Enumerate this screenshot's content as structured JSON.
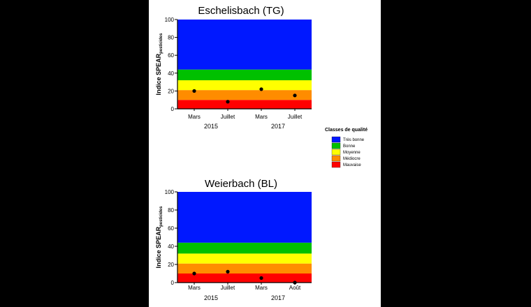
{
  "chart_data": [
    {
      "type": "scatter",
      "title": "Eschelisbach (TG)",
      "ylabel_main": "Indice SPEAR",
      "ylabel_sub": "pesticides",
      "ylim": [
        0,
        100
      ],
      "yticks": [
        0,
        20,
        40,
        60,
        80,
        100
      ],
      "categories": [
        "Mars",
        "Juillet",
        "Mars",
        "Juillet"
      ],
      "years": [
        {
          "label": "2015",
          "span": [
            0,
            1
          ]
        },
        {
          "label": "2017",
          "span": [
            2,
            3
          ]
        }
      ],
      "values": [
        20,
        8,
        22,
        15
      ],
      "bands": [
        {
          "from": 0,
          "to": 10,
          "color": "#ff0000"
        },
        {
          "from": 10,
          "to": 21,
          "color": "#ff8c00"
        },
        {
          "from": 21,
          "to": 32,
          "color": "#ffff00"
        },
        {
          "from": 32,
          "to": 44,
          "color": "#00c000"
        },
        {
          "from": 44,
          "to": 100,
          "color": "#0018ff"
        }
      ]
    },
    {
      "type": "scatter",
      "title": "Weierbach (BL)",
      "ylabel_main": "Indice SPEAR",
      "ylabel_sub": "pesticides",
      "ylim": [
        0,
        100
      ],
      "yticks": [
        0,
        20,
        40,
        60,
        80,
        100
      ],
      "categories": [
        "Mars",
        "Juillet",
        "Mars",
        "Août"
      ],
      "years": [
        {
          "label": "2015",
          "span": [
            0,
            1
          ]
        },
        {
          "label": "2017",
          "span": [
            2,
            3
          ]
        }
      ],
      "values": [
        10,
        12,
        5,
        0
      ],
      "bands": [
        {
          "from": 0,
          "to": 10,
          "color": "#ff0000"
        },
        {
          "from": 10,
          "to": 21,
          "color": "#ff8c00"
        },
        {
          "from": 21,
          "to": 32,
          "color": "#ffff00"
        },
        {
          "from": 32,
          "to": 44,
          "color": "#00c000"
        },
        {
          "from": 44,
          "to": 100,
          "color": "#0018ff"
        }
      ]
    }
  ],
  "legend": {
    "title": "Classes de qualité",
    "placement": "right",
    "items": [
      {
        "label": "Très bonne",
        "color": "#0018ff"
      },
      {
        "label": "Bonne",
        "color": "#00c000"
      },
      {
        "label": "Moyenne",
        "color": "#ffff00"
      },
      {
        "label": "Médiocre",
        "color": "#ff8c00"
      },
      {
        "label": "Mauvaise",
        "color": "#ff0000"
      }
    ]
  }
}
